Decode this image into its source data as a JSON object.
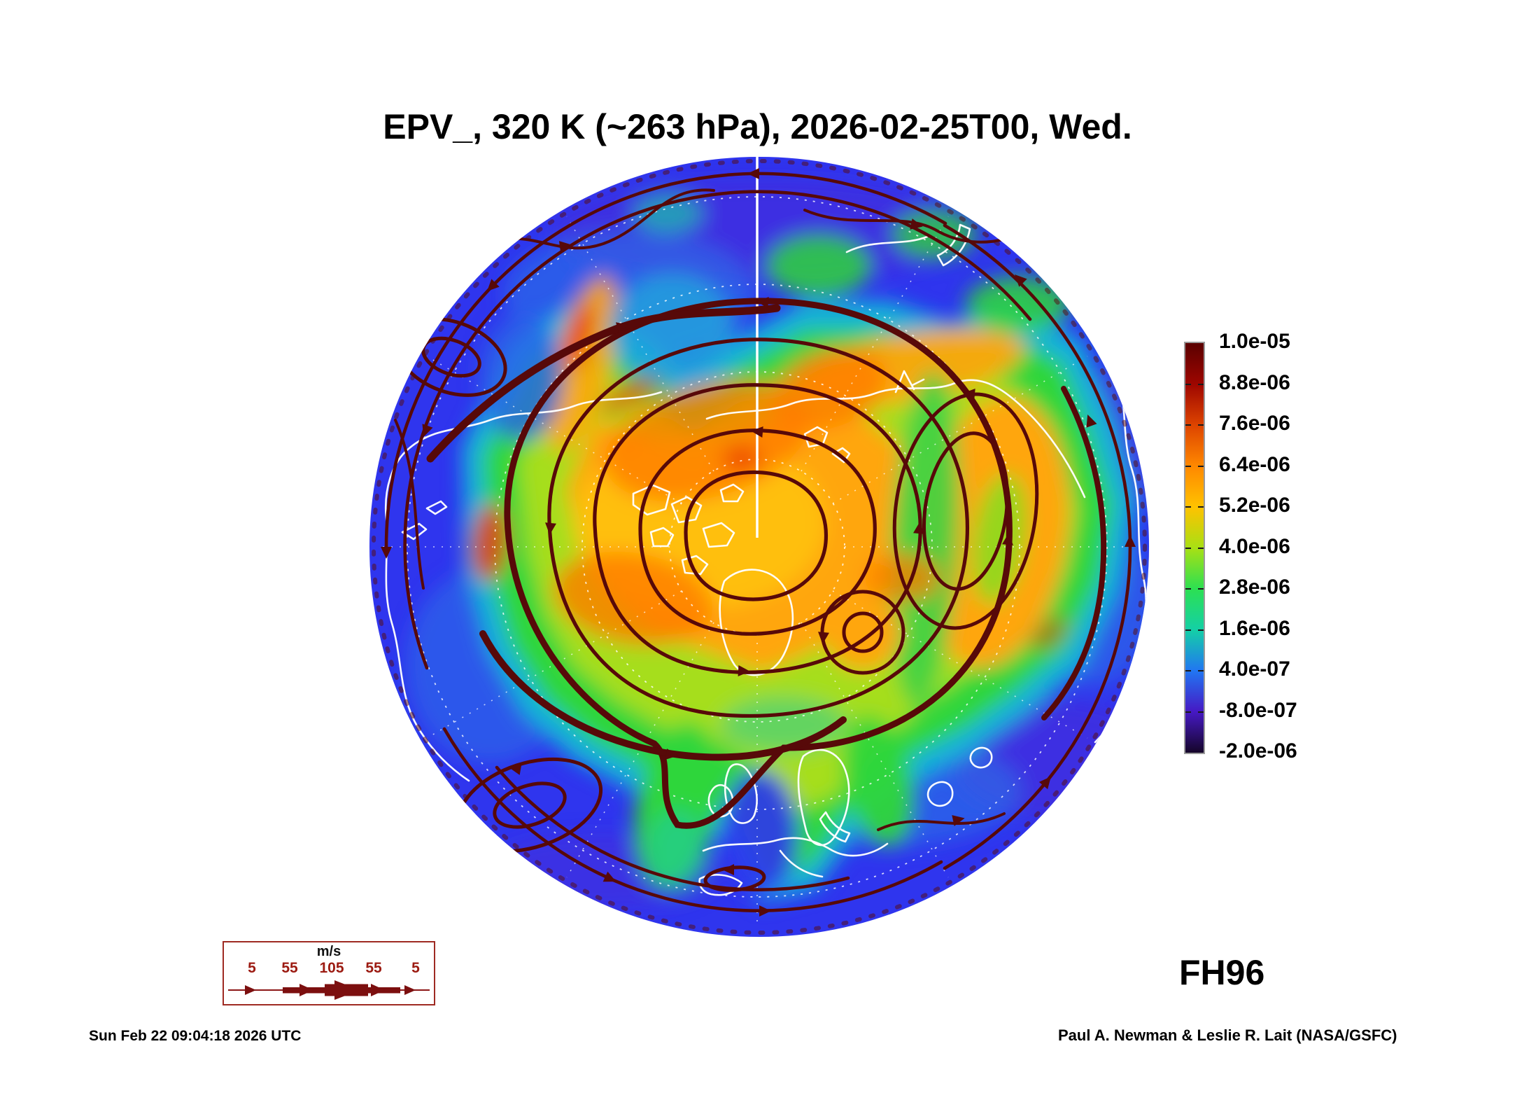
{
  "title": "EPV_, 320 K (~263 hPa), 2026-02-25T00, Wed.",
  "colorbar": {
    "tick_labels": [
      "1.0e-05",
      "8.8e-06",
      "7.6e-06",
      "6.4e-06",
      "5.2e-06",
      "4.0e-06",
      "2.8e-06",
      "1.6e-06",
      "4.0e-07",
      "-8.0e-07",
      "-2.0e-06"
    ],
    "gradient_stops": [
      "#5a0000",
      "#9e0600",
      "#dd4400",
      "#ff8800",
      "#ffc200",
      "#a8e014",
      "#2ce052",
      "#14d0a6",
      "#2176f2",
      "#4619c4",
      "#150529"
    ]
  },
  "wind_legend": {
    "units_label": "m/s",
    "speed_labels": [
      "5",
      "55",
      "105",
      "55",
      "5"
    ],
    "arrow_color": "#7c0f0f",
    "border_color": "#9e2a22",
    "label_color": "#9c1b12"
  },
  "annotations": {
    "forecast_hour": "FH96",
    "timestamp": "Sun Feb 22 09:04:18 2026 UTC",
    "credit": "Paul A. Newman & Leslie R. Lait (NASA/GSFC)"
  },
  "map_palette": {
    "outer_field_blue": "#2f35ee",
    "mid_field_teal": "#17b2d8",
    "field_green": "#2fd63a",
    "field_yellow_green": "#a6de1a",
    "core_orange": "#ffa608",
    "hot_patch_red": "#ea3c08",
    "streamline_maroon": "#570909",
    "coastline_white": "#ffffff",
    "graticule_white": "#ffffff"
  }
}
